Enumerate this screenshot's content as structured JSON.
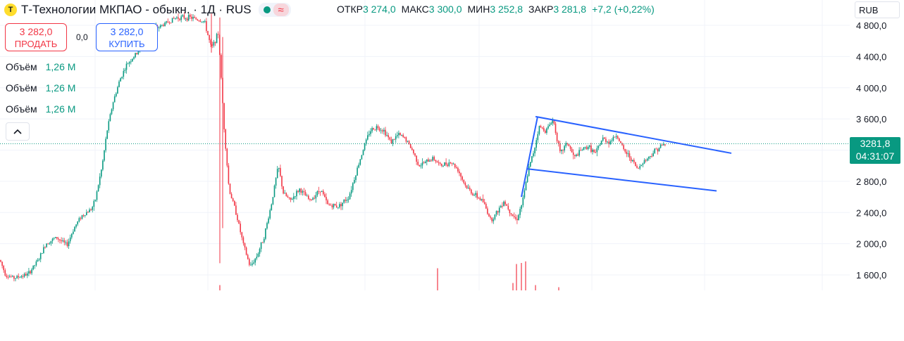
{
  "header": {
    "logo_letter": "T",
    "title": "Т-Технологии МКПАО - обыкн. · 1Д · RUS",
    "wave_symbol": "≈"
  },
  "ohlc": {
    "open_label": "ОТКР",
    "open": "3 274,0",
    "high_label": "МАКС",
    "high": "3 300,0",
    "low_label": "МИН",
    "low": "3 252,8",
    "close_label": "ЗАКР",
    "close": "3 281,8",
    "change": "+7,2 (+0,22%)"
  },
  "trade": {
    "sell_price": "3 282,0",
    "sell_label": "ПРОДАТЬ",
    "spread": "0,0",
    "buy_price": "3 282,0",
    "buy_label": "КУПИТЬ"
  },
  "volumes": [
    {
      "label": "Объём",
      "value": "1,26 M"
    },
    {
      "label": "Объём",
      "value": "1,26 M"
    },
    {
      "label": "Объём",
      "value": "1,26 M"
    }
  ],
  "collapse_icon": "chevron-up-icon",
  "currency": "RUB",
  "last_price": {
    "value": "3281,8",
    "countdown": "04:31:07"
  },
  "colors": {
    "up": "#089981",
    "down": "#f23645",
    "trend": "#2962ff",
    "grid": "#f0f3fa"
  },
  "chart_data": {
    "type": "candlestick",
    "yaxis": {
      "ticks": [
        1600,
        2000,
        2400,
        2800,
        3200,
        3600,
        4000,
        4400,
        4800
      ],
      "tick_labels": [
        "1 600,0",
        "2 000,0",
        "2 400,0",
        "2 800,0",
        "",
        "3 600,0",
        "4 000,0",
        "4 400,0",
        "4 800,0"
      ],
      "ylim": [
        1550,
        4920
      ]
    },
    "last_price": 3281.8,
    "price_path": [
      [
        0,
        1790
      ],
      [
        8,
        1600
      ],
      [
        20,
        1560
      ],
      [
        40,
        1610
      ],
      [
        55,
        1800
      ],
      [
        65,
        2000
      ],
      [
        80,
        2080
      ],
      [
        95,
        1980
      ],
      [
        105,
        2200
      ],
      [
        115,
        2350
      ],
      [
        130,
        2450
      ],
      [
        135,
        2550
      ],
      [
        145,
        3000
      ],
      [
        152,
        3450
      ],
      [
        160,
        3800
      ],
      [
        170,
        4100
      ],
      [
        180,
        4300
      ],
      [
        195,
        4450
      ],
      [
        210,
        4700
      ],
      [
        230,
        4800
      ],
      [
        250,
        4900
      ],
      [
        270,
        4900
      ],
      [
        290,
        4850
      ],
      [
        300,
        4500
      ],
      [
        310,
        4700
      ],
      [
        318,
        3500
      ],
      [
        325,
        2700
      ],
      [
        335,
        2400
      ],
      [
        345,
        2000
      ],
      [
        355,
        1700
      ],
      [
        365,
        1850
      ],
      [
        375,
        2100
      ],
      [
        385,
        2500
      ],
      [
        395,
        3000
      ],
      [
        402,
        2650
      ],
      [
        412,
        2550
      ],
      [
        425,
        2700
      ],
      [
        440,
        2550
      ],
      [
        455,
        2700
      ],
      [
        465,
        2500
      ],
      [
        480,
        2480
      ],
      [
        495,
        2600
      ],
      [
        505,
        2900
      ],
      [
        515,
        3200
      ],
      [
        525,
        3450
      ],
      [
        535,
        3500
      ],
      [
        545,
        3450
      ],
      [
        555,
        3300
      ],
      [
        565,
        3400
      ],
      [
        575,
        3350
      ],
      [
        585,
        3200
      ],
      [
        595,
        3000
      ],
      [
        605,
        3050
      ],
      [
        615,
        3100
      ],
      [
        625,
        3000
      ],
      [
        640,
        3050
      ],
      [
        650,
        2950
      ],
      [
        660,
        2750
      ],
      [
        670,
        2650
      ],
      [
        685,
        2550
      ],
      [
        697,
        2300
      ],
      [
        705,
        2400
      ],
      [
        715,
        2550
      ],
      [
        725,
        2400
      ],
      [
        733,
        2300
      ],
      [
        742,
        2550
      ],
      [
        750,
        2950
      ],
      [
        758,
        3200
      ],
      [
        765,
        3500
      ],
      [
        775,
        3450
      ],
      [
        785,
        3600
      ],
      [
        795,
        3150
      ],
      [
        805,
        3300
      ],
      [
        815,
        3100
      ],
      [
        825,
        3200
      ],
      [
        835,
        3250
      ],
      [
        845,
        3150
      ],
      [
        855,
        3350
      ],
      [
        865,
        3300
      ],
      [
        875,
        3400
      ],
      [
        885,
        3200
      ],
      [
        895,
        3100
      ],
      [
        905,
        2950
      ],
      [
        912,
        3050
      ],
      [
        920,
        3100
      ],
      [
        930,
        3200
      ],
      [
        938,
        3250
      ],
      [
        945,
        3282
      ]
    ],
    "trend_lines": [
      {
        "from": [
          740,
          2600
        ],
        "to": [
          763,
          3630
        ]
      },
      {
        "from": [
          760,
          3630
        ],
        "to": [
          1038,
          3160
        ]
      },
      {
        "from": [
          748,
          2960
        ],
        "to": [
          1017,
          2677
        ]
      }
    ],
    "volume_spikes": [
      {
        "x": 621,
        "v": 0.42
      },
      {
        "x": 728,
        "v": 0.14
      },
      {
        "x": 733,
        "v": 0.5
      },
      {
        "x": 740,
        "v": 0.52
      },
      {
        "x": 746,
        "v": 0.55
      },
      {
        "x": 760,
        "v": 0.1
      },
      {
        "x": 793,
        "v": 0.06
      },
      {
        "x": 312,
        "v": 0.1
      }
    ]
  }
}
